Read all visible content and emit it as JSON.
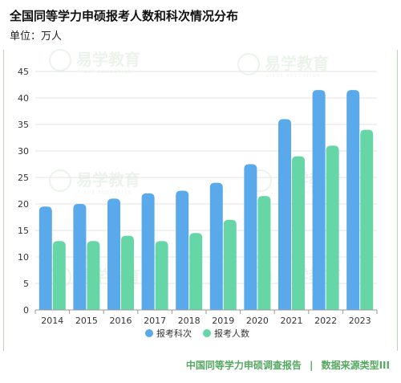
{
  "header": {
    "title": "全国同等学力申硕报考人数和科次情况分布",
    "unit": "单位：万人"
  },
  "footer": {
    "report": "中国同等学力申硕调查报告",
    "separator": "|",
    "source": "数据来源类型III"
  },
  "watermark": {
    "text": "易学教育",
    "subtext": "YIXUE EDUCATION"
  },
  "colors": {
    "series1": "#5aa9ea",
    "series2": "#66d6a6",
    "grid": "#e3e3e3",
    "footer": "#55a85f"
  },
  "chart_data": {
    "type": "bar",
    "categories": [
      "2014",
      "2015",
      "2016",
      "2017",
      "2018",
      "2019",
      "2020",
      "2021",
      "2022",
      "2023"
    ],
    "series": [
      {
        "name": "报考科次",
        "values": [
          19.5,
          20,
          21,
          22,
          22.5,
          24,
          27.5,
          36,
          41.5,
          41.5
        ]
      },
      {
        "name": "报考人数",
        "values": [
          13,
          13,
          14,
          13,
          14.5,
          17,
          21.5,
          29,
          31,
          34
        ]
      }
    ],
    "ylim": [
      0,
      45
    ],
    "yticks": [
      "0",
      "5",
      "10",
      "15",
      "20",
      "25",
      "30",
      "35",
      "40",
      "45"
    ],
    "grid": true,
    "legend": "bottom-center"
  }
}
